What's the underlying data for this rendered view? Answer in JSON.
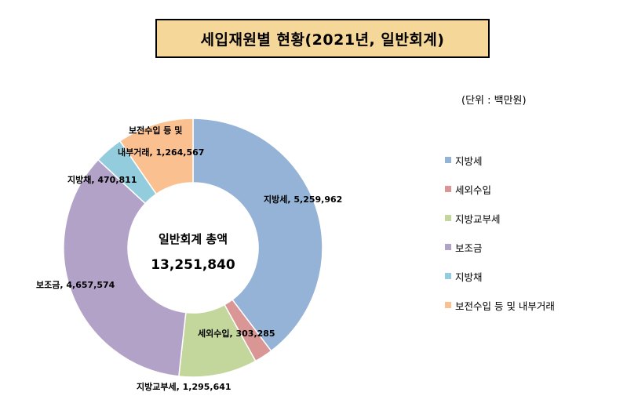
{
  "header": {
    "title": "세입재원별  현황(2021년,  일반회계)"
  },
  "unit_label": "(단위  : 백만원)",
  "center": {
    "title": "일반회계 총액",
    "value": "13,251,840"
  },
  "chart_data": {
    "type": "donut",
    "title": "세입재원별  현황(2021년,  일반회계)",
    "total": 13251840,
    "categories": [
      "지방세",
      "세외수입",
      "지방교부세",
      "보조금",
      "지방채",
      "보전수입 등 및 내부거래"
    ],
    "values": [
      5259962,
      303285,
      1295641,
      4657574,
      470811,
      1264567
    ],
    "colors": [
      "#95b3d7",
      "#d99694",
      "#c3d69b",
      "#b3a2c7",
      "#93cddd",
      "#fac090"
    ],
    "data_labels": [
      "지방세, 5,259,962",
      "세외수입, 303,285",
      "지방교부세, 1,295,641",
      "보조금, 4,657,574",
      "지방채, 470,811",
      "보전수입 등 및 내부거래, 1,264,567"
    ],
    "legend_position": "right"
  },
  "labels": {
    "l0": "지방세, 5,259,962",
    "l1": "세외수입, 303,285",
    "l2": "지방교부세, 1,295,641",
    "l3": "보조금, 4,657,574",
    "l4": "지방채, 470,811",
    "l5a": "보전수입 등 및",
    "l5b": "내부거래, 1,264,567"
  },
  "legend": [
    "지방세",
    "세외수입",
    "지방교부세",
    "보조금",
    "지방채",
    "보전수입 등 및 내부거래"
  ]
}
